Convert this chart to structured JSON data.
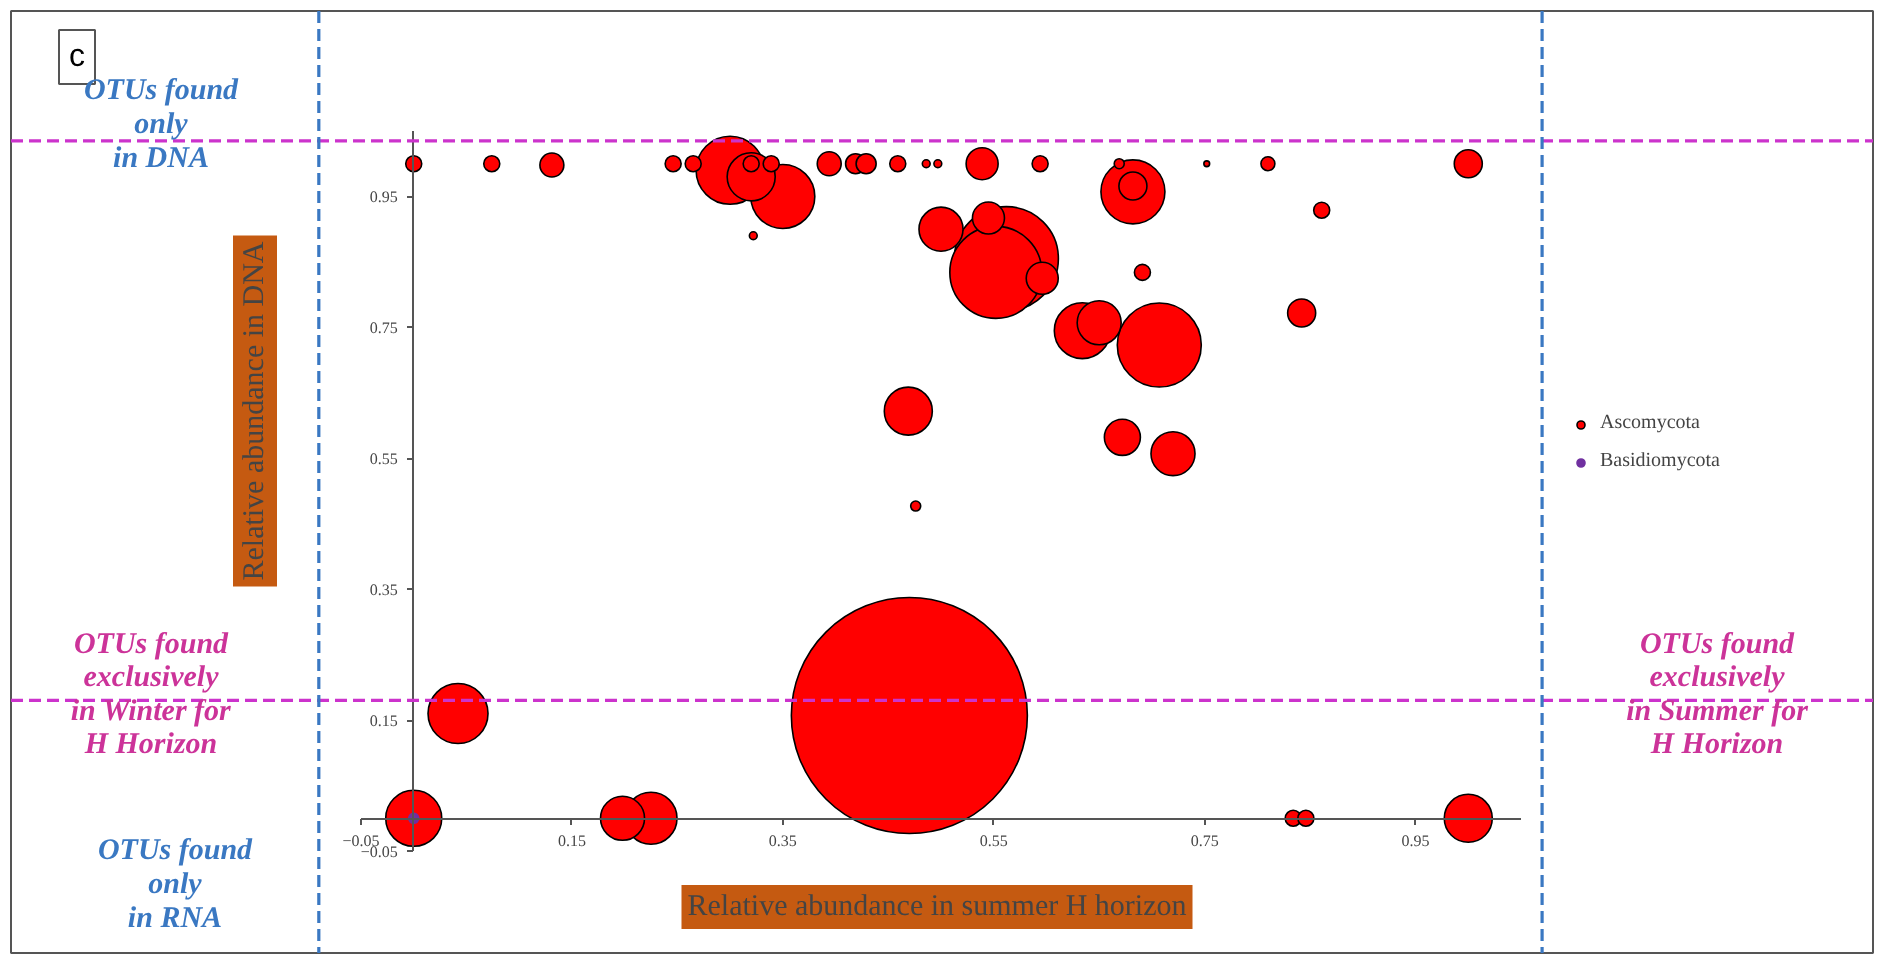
{
  "chart_data": {
    "type": "bubble",
    "xlabel": "Relative abundance in summer H horizon",
    "ylabel": "Relative abundance in DNA",
    "annotations": [
      "c",
      "OTUs found\nonly\nin DNA",
      "OTUs found\nexclusively\nin Winter for\nH Horizon",
      "OTUs found\nonly\nin RNA",
      "OTUs found\nexclusively\nin Summer for\nH Horizon"
    ],
    "xlim": [
      -0.05,
      1.05
    ],
    "ylim": [
      -0.05,
      1.05
    ],
    "xticks": [
      -0.05,
      0.15,
      0.35,
      0.55,
      0.75,
      0.95
    ],
    "yticks": [
      -0.05,
      0.15,
      0.35,
      0.55,
      0.75,
      0.95
    ],
    "ref_lines": [
      {
        "axis": "y",
        "value": 1.035,
        "color": "#cc33cc",
        "line_style": "dashed"
      },
      {
        "axis": "y",
        "value": 0.18,
        "color": "#cc33cc",
        "line_style": "dashed"
      },
      {
        "axis": "x",
        "value": -0.09,
        "color": "#3a78c2",
        "line_style": "dashed"
      },
      {
        "axis": "x",
        "value": 1.07,
        "color": "#3a78c2",
        "line_style": "dashed"
      }
    ],
    "legend": "right",
    "grid": false,
    "series": [
      {
        "name": "Ascomycota",
        "color": "#ff0000",
        "x": [
          0.47,
          0.562,
          0.552,
          0.707,
          0.3,
          0.634,
          0.35,
          0.682,
          0.042,
          0.65,
          0.225,
          0.0,
          0.469,
          0.32,
          0.198,
          0.72,
          0.5,
          1.0,
          0.672,
          0.539,
          0.545,
          0.596,
          1.0,
          0.842,
          0.682,
          0.131,
          0.394,
          0.0,
          0.419,
          0.429,
          0.074,
          0.246,
          0.265,
          0.32,
          0.339,
          0.459,
          0.594,
          0.861,
          0.691,
          0.834,
          0.846,
          0.81,
          0.669,
          0.486,
          0.497,
          0.322,
          0.476,
          0.752
        ],
        "values": [
          0.157,
          0.855,
          0.834,
          0.723,
          0.99,
          0.745,
          0.95,
          0.957,
          0.16,
          0.757,
          0.0,
          0.0,
          0.622,
          0.98,
          0.0,
          0.557,
          0.9,
          0.0,
          0.582,
          1.0,
          0.917,
          0.825,
          1.0,
          0.772,
          0.966,
          0.998,
          1.0,
          1.0,
          1.0,
          1.0,
          1.0,
          1.0,
          1.0,
          1.0,
          1.0,
          1.0,
          1.0,
          0.929,
          0.834,
          0.0,
          0.0,
          1.0,
          1.0,
          1.0,
          1.0,
          0.89,
          0.477,
          1.0
        ],
        "sizes": [
          1,
          0.1942,
          0.152,
          0.1267,
          0.083,
          0.0563,
          0.0735,
          0.0735,
          0.0646,
          0.0348,
          0.0486,
          0.0563,
          0.0414,
          0.0414,
          0.0348,
          0.0348,
          0.0348,
          0.0414,
          0.0233,
          0.0184,
          0.0184,
          0.0184,
          0.0141,
          0.0141,
          0.0141,
          0.0103,
          0.0103,
          0.0046,
          0.0072,
          0.0072,
          0.0046,
          0.0046,
          0.0046,
          0.0046,
          0.0046,
          0.0046,
          0.0046,
          0.0046,
          0.0046,
          0.0046,
          0.0046,
          0.0035,
          0.0018,
          0.0011,
          0.0011,
          0.0011,
          0.0018,
          0.0006
        ]
      },
      {
        "name": "Basidiomycota",
        "color": "#7030a0",
        "x": [
          0.0
        ],
        "values": [
          0.0
        ],
        "sizes": [
          0.0018
        ]
      }
    ]
  }
}
